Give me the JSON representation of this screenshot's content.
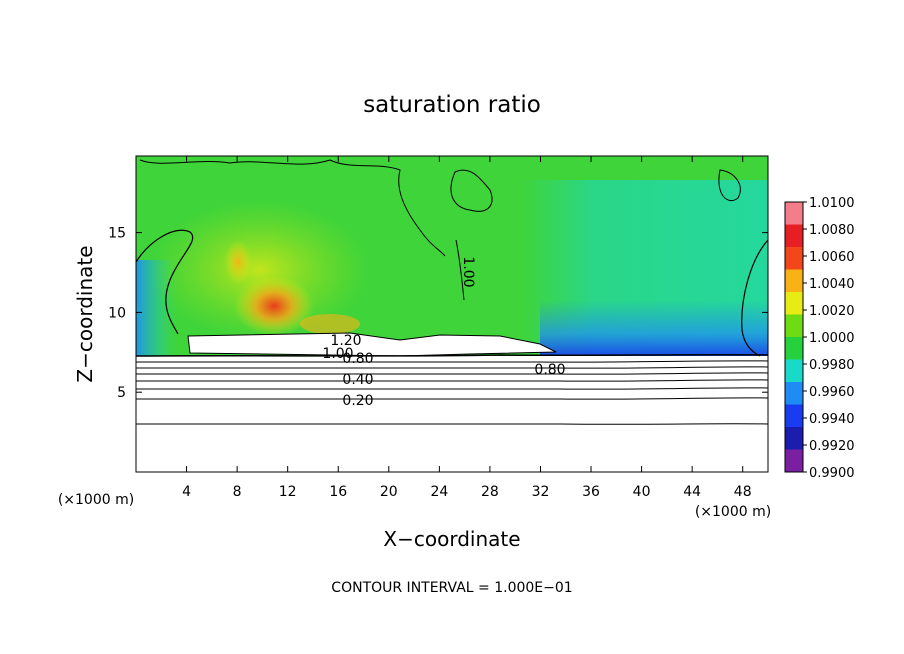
{
  "chart_data": {
    "type": "heatmap",
    "title": "saturation ratio",
    "xlabel": "X−coordinate",
    "ylabel": "Z−coordinate",
    "x_unit_left": "(×1000 m)",
    "x_unit_right": "(×1000 m)",
    "xlim": [
      0,
      50
    ],
    "ylim": [
      0,
      19.8
    ],
    "x_ticks": [
      4,
      8,
      12,
      16,
      20,
      24,
      28,
      32,
      36,
      40,
      44,
      48
    ],
    "x_tick_labels": [
      "4",
      "8",
      "12",
      "16",
      "20",
      "24",
      "28",
      "32",
      "36",
      "40",
      "44",
      "48"
    ],
    "y_ticks": [
      5,
      10,
      15
    ],
    "y_tick_labels": [
      "5",
      "10",
      "15"
    ],
    "colorbar": {
      "min": 0.99,
      "max": 1.01,
      "labels": [
        "1.0100",
        "1.0080",
        "1.0060",
        "1.0040",
        "1.0020",
        "1.0000",
        "0.9980",
        "0.9960",
        "0.9940",
        "0.9920",
        "0.9900"
      ],
      "colors": [
        "#7a1fa2",
        "#1c1cae",
        "#1a3cf0",
        "#1f8cf5",
        "#19d9c8",
        "#26d13e",
        "#6fdc13",
        "#e6ec14",
        "#f9b215",
        "#f3461a",
        "#e61f24",
        "#f47d8a"
      ]
    },
    "contour_labels": [
      "1.20",
      "1.00",
      "0.80",
      "0.40",
      "0.20",
      "0.80",
      "1.00"
    ],
    "footer": "CONTOUR INTERVAL = 1.000E−01"
  }
}
